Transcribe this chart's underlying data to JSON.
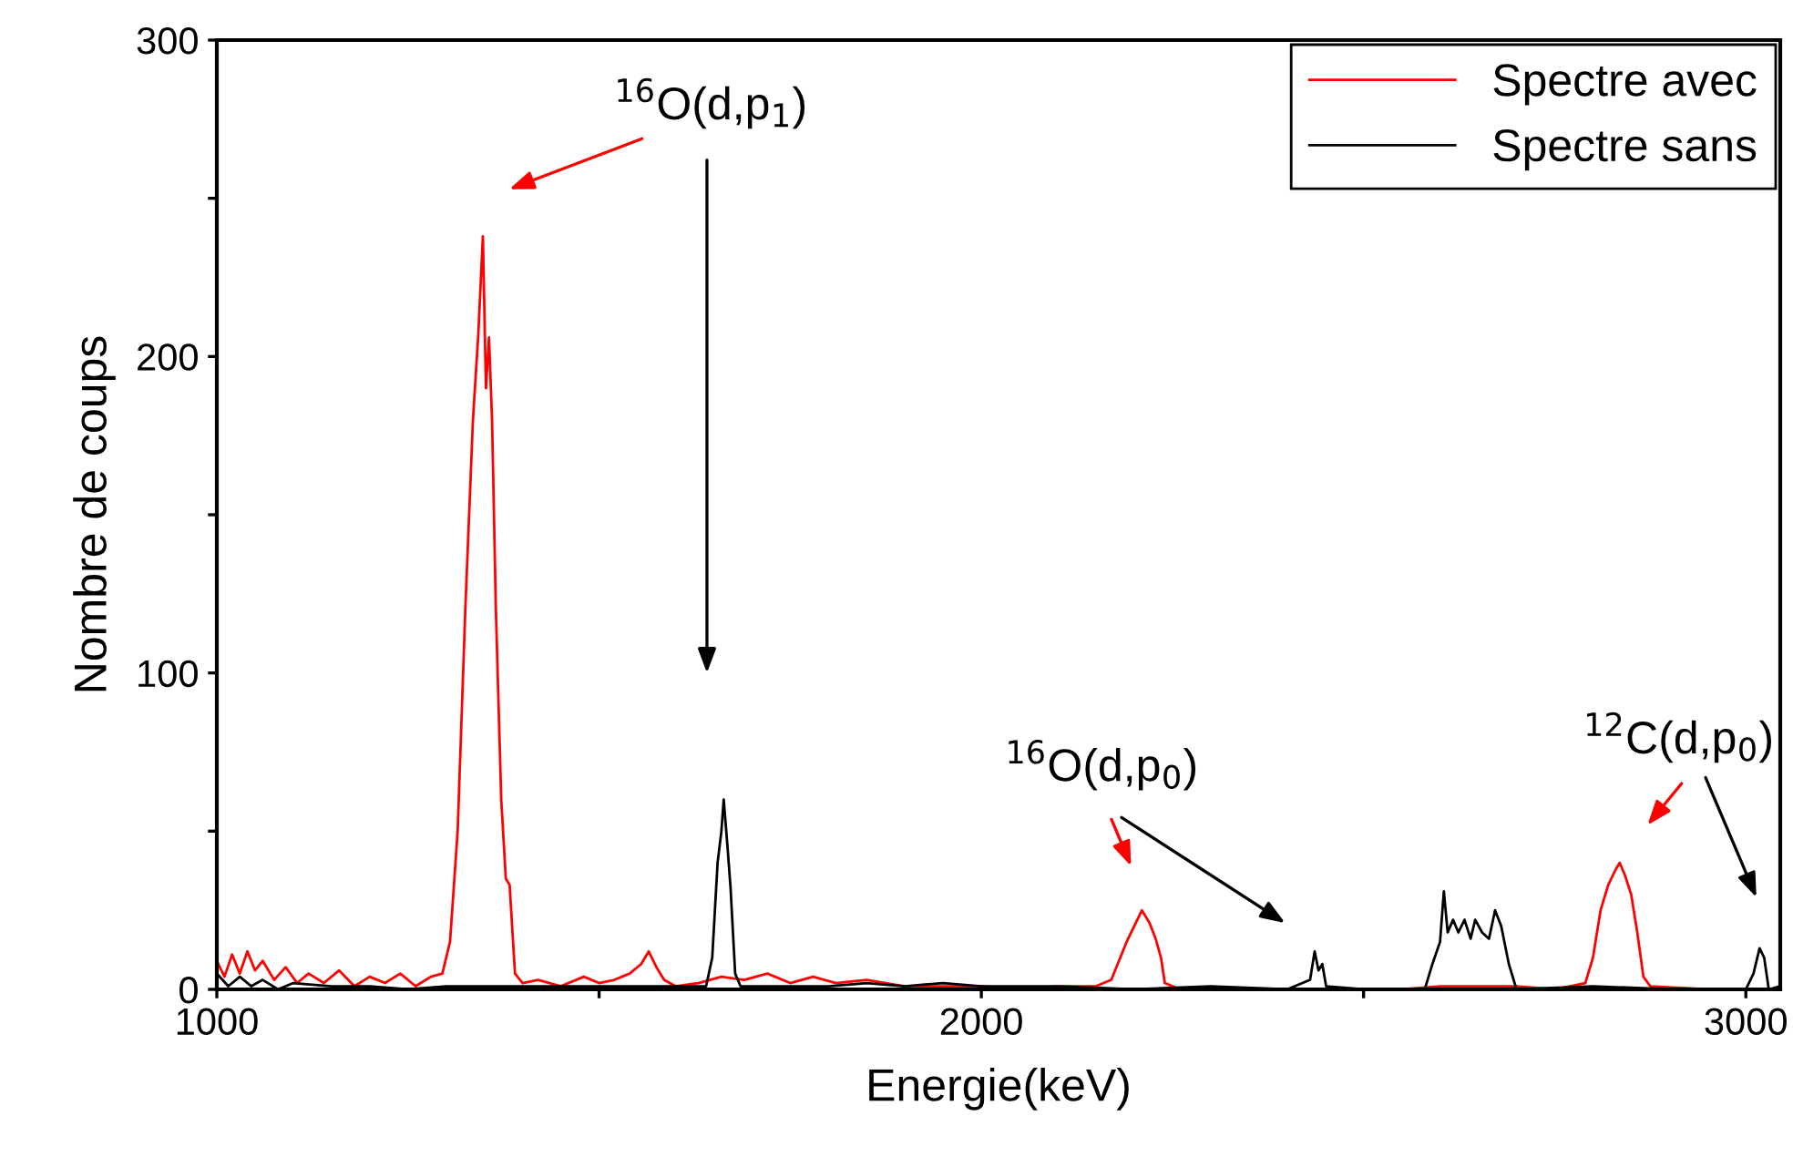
{
  "chart_data": {
    "type": "line",
    "xlabel": "Energie(keV)",
    "ylabel": "Nombre de coups",
    "xlim": [
      1000,
      3045
    ],
    "ylim": [
      0,
      300
    ],
    "xticks": [
      1000,
      {
        "value": 1500,
        "label": null
      },
      2000,
      {
        "value": 2500,
        "label": null
      },
      3000
    ],
    "yticks": [
      0,
      {
        "value": 50,
        "label": null
      },
      100,
      {
        "value": 150,
        "label": null
      },
      200,
      {
        "value": 250,
        "label": null
      },
      300
    ],
    "grid": false,
    "legend": "top right",
    "marker": "none",
    "line_style": "solid",
    "annotations": [
      "$^{16}$O(d,p$_{1}$)",
      "$^{16}$O(d,p$_{0}$)",
      "$^{12}$C(d,p$_{0}$)"
    ],
    "series": [
      {
        "name": "Spectre avec",
        "color": "#ff0000",
        "x": [
          1000,
          1010,
          1020,
          1030,
          1040,
          1050,
          1060,
          1075,
          1090,
          1105,
          1120,
          1140,
          1160,
          1180,
          1200,
          1220,
          1240,
          1260,
          1280,
          1295,
          1305,
          1315,
          1325,
          1335,
          1342,
          1348,
          1352,
          1356,
          1360,
          1365,
          1372,
          1378,
          1383,
          1390,
          1400,
          1420,
          1450,
          1480,
          1500,
          1520,
          1540,
          1555,
          1565,
          1575,
          1585,
          1600,
          1630,
          1660,
          1690,
          1720,
          1750,
          1780,
          1810,
          1850,
          1900,
          1950,
          2000,
          2050,
          2100,
          2150,
          2170,
          2180,
          2190,
          2200,
          2210,
          2220,
          2228,
          2235,
          2240,
          2260,
          2350,
          2450,
          2550,
          2600,
          2700,
          2750,
          2790,
          2800,
          2810,
          2820,
          2830,
          2835,
          2842,
          2850,
          2858,
          2866,
          2875,
          2950,
          3045
        ],
        "values": [
          9,
          4,
          11,
          5,
          12,
          6,
          9,
          3,
          7,
          2,
          5,
          2,
          6,
          1,
          4,
          2,
          5,
          1,
          4,
          5,
          15,
          50,
          120,
          180,
          207,
          238,
          190,
          206,
          180,
          120,
          60,
          35,
          33,
          5,
          2,
          3,
          1,
          4,
          2,
          3,
          5,
          8,
          12,
          7,
          3,
          1,
          2,
          4,
          3,
          5,
          2,
          4,
          2,
          3,
          1,
          1,
          1,
          0,
          1,
          1,
          3,
          9,
          15,
          20,
          25,
          21,
          16,
          10,
          2,
          0,
          0,
          0,
          0,
          1,
          1,
          0,
          2,
          10,
          25,
          33,
          38,
          40,
          36,
          30,
          18,
          4,
          1,
          0,
          0
        ]
      },
      {
        "name": "Spectre sans",
        "color": "#000000",
        "x": [
          1000,
          1015,
          1030,
          1045,
          1060,
          1080,
          1100,
          1150,
          1200,
          1250,
          1300,
          1400,
          1500,
          1600,
          1640,
          1648,
          1655,
          1660,
          1663,
          1668,
          1672,
          1678,
          1685,
          1720,
          1800,
          1850,
          1900,
          1950,
          2000,
          2100,
          2200,
          2300,
          2400,
          2430,
          2436,
          2441,
          2446,
          2451,
          2500,
          2580,
          2590,
          2600,
          2605,
          2610,
          2617,
          2624,
          2632,
          2640,
          2646,
          2655,
          2664,
          2672,
          2680,
          2690,
          2700,
          2800,
          2900,
          3000,
          3010,
          3018,
          3024,
          3030,
          3045
        ],
        "values": [
          5,
          1,
          4,
          1,
          3,
          0,
          2,
          1,
          1,
          0,
          1,
          1,
          1,
          1,
          1,
          10,
          40,
          50,
          60,
          45,
          32,
          5,
          1,
          1,
          1,
          2,
          1,
          2,
          1,
          1,
          0,
          1,
          0,
          3,
          12,
          6,
          8,
          1,
          0,
          0,
          8,
          15,
          31,
          18,
          22,
          18,
          22,
          16,
          22,
          18,
          16,
          25,
          20,
          8,
          0,
          1,
          0,
          0,
          5,
          13,
          10,
          0,
          1
        ]
      }
    ]
  }
}
